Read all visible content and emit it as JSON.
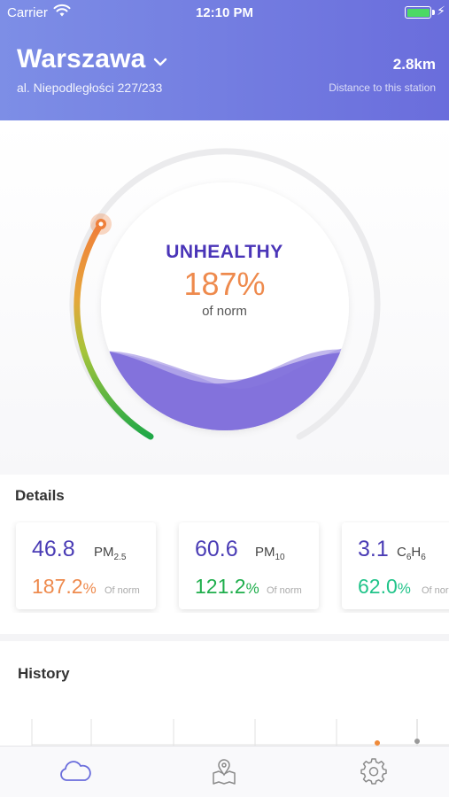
{
  "status_bar": {
    "carrier": "Carrier",
    "time": "12:10 PM"
  },
  "header": {
    "city": "Warszawa",
    "address": "al. Niepodległości 227/233",
    "distance": "2.8km",
    "distance_label": "Distance to this station"
  },
  "gauge": {
    "quality": "UNHEALTHY",
    "percent": "187%",
    "of_norm": "of norm",
    "level": 1.87
  },
  "details": {
    "title": "Details",
    "cards": [
      {
        "value": "46.8",
        "name": "PM",
        "sub": "2.5",
        "percent": "187.2",
        "pct_sign": "%",
        "norm": "Of norm",
        "color": "#ee8a4d"
      },
      {
        "value": "60.6",
        "name": "PM",
        "sub": "10",
        "percent": "121.2",
        "pct_sign": "%",
        "norm": "Of norm",
        "color": "#1fae4c"
      },
      {
        "value": "3.1",
        "name": "C",
        "sub": "6",
        "name2": "H",
        "sub2": "6",
        "percent": "62.0",
        "pct_sign": "%",
        "norm": "Of norm",
        "color": "#21c48a"
      }
    ]
  },
  "history": {
    "title": "History"
  },
  "tabs": [
    {
      "icon": "cloud-icon",
      "active": true
    },
    {
      "icon": "map-icon",
      "active": false
    },
    {
      "icon": "gear-icon",
      "active": false
    }
  ],
  "colors": {
    "accent": "#6a6ddc",
    "header_left": "#7d8ee6",
    "quality": "#4a35b8"
  }
}
